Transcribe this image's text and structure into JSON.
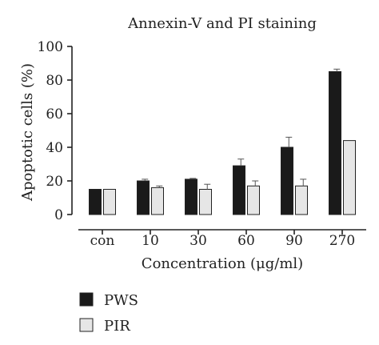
{
  "chart_data": {
    "type": "bar",
    "title": "Annexin-V and PI staining",
    "xlabel": "Concentration (μg/ml)",
    "ylabel": "Apoptotic cells (%)",
    "categories": [
      "con",
      "10",
      "30",
      "60",
      "90",
      "270"
    ],
    "ylim": [
      0,
      100
    ],
    "yticks": [
      0,
      20,
      40,
      60,
      80,
      100
    ],
    "series": [
      {
        "name": "PWS",
        "color": "#1a1a1a",
        "values": [
          15,
          20,
          21,
          29,
          40,
          85
        ],
        "errors": [
          0,
          1,
          0.5,
          4,
          6,
          1.5
        ]
      },
      {
        "name": "PIR",
        "color": "#e6e6e6",
        "values": [
          15,
          16,
          15,
          17,
          17,
          44
        ],
        "errors": [
          0,
          1,
          3,
          3,
          4,
          0
        ]
      }
    ],
    "legend_position": "bottom-left",
    "grid": false
  }
}
